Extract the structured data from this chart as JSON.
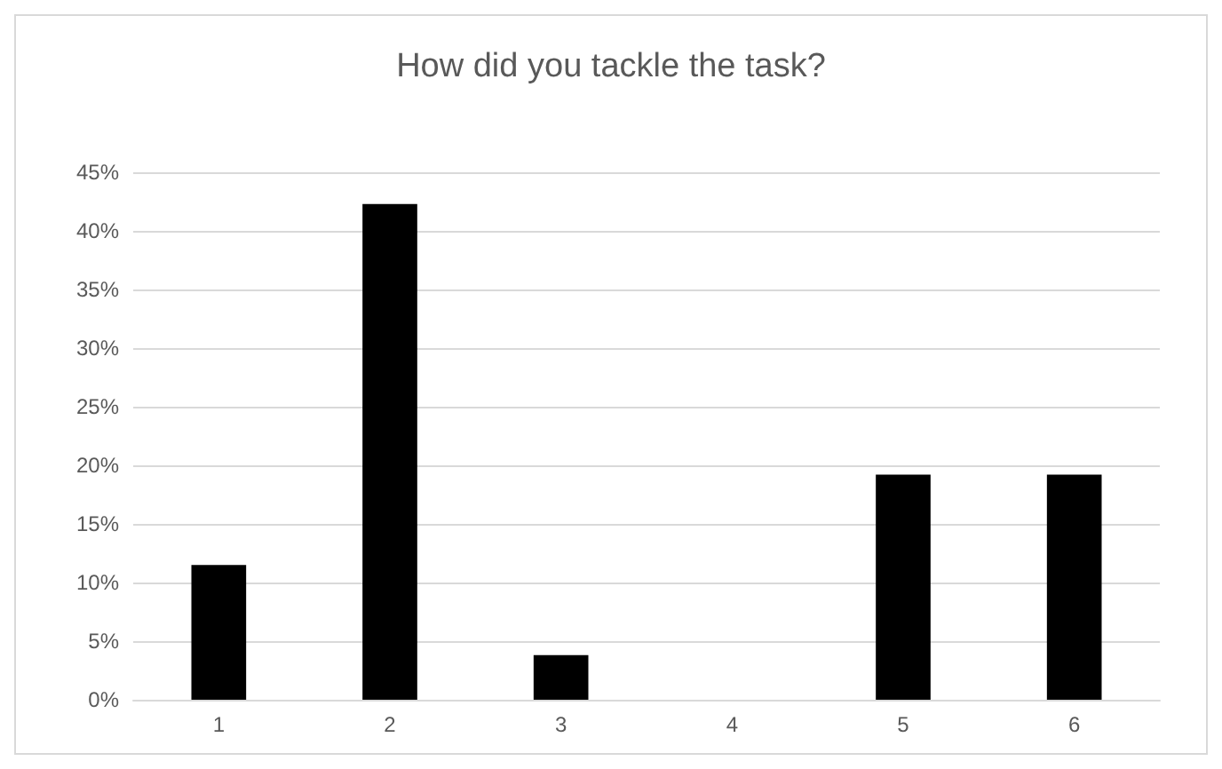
{
  "chart_data": {
    "type": "bar",
    "title": "How did you tackle the task?",
    "categories": [
      "1",
      "2",
      "3",
      "4",
      "5",
      "6"
    ],
    "values": [
      11.5,
      42.3,
      3.8,
      0,
      19.2,
      19.2
    ],
    "color": "#000000",
    "ylim": [
      0,
      45
    ],
    "yticks": [
      {
        "value": 0,
        "label": "0%"
      },
      {
        "value": 5,
        "label": "5%"
      },
      {
        "value": 10,
        "label": "10%"
      },
      {
        "value": 15,
        "label": "15%"
      },
      {
        "value": 20,
        "label": "20%"
      },
      {
        "value": 25,
        "label": "25%"
      },
      {
        "value": 30,
        "label": "30%"
      },
      {
        "value": 35,
        "label": "35%"
      },
      {
        "value": 40,
        "label": "40%"
      },
      {
        "value": 45,
        "label": "45%"
      }
    ],
    "grid": "y"
  }
}
